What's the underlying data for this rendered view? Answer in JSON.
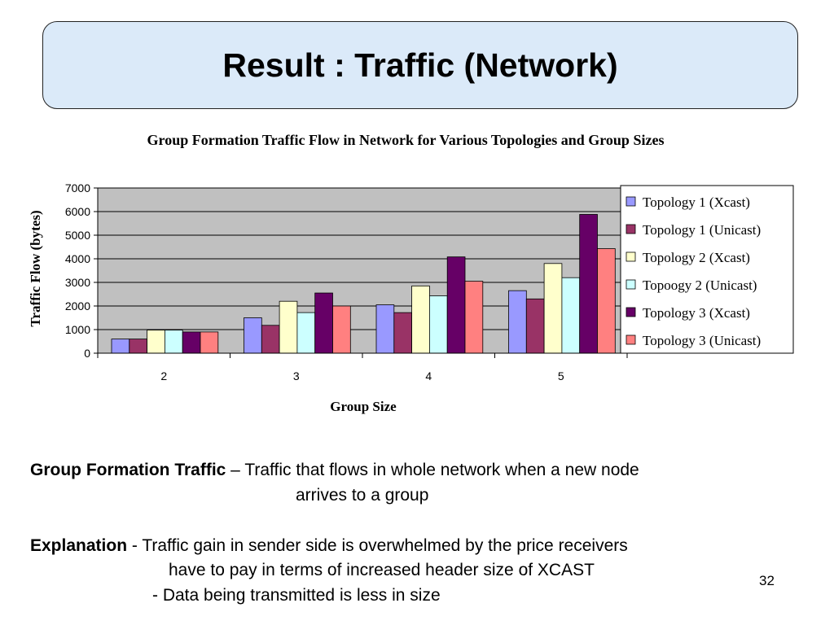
{
  "slide": {
    "title": "Result : Traffic (Network)",
    "definition_term": "Group Formation Traffic",
    "definition_line1": " – Traffic that flows in whole network when a new node",
    "definition_line2": "arrives to a group",
    "explanation_term": "Explanation",
    "explanation_line1": " - Traffic gain in sender side is overwhelmed by the price receivers",
    "explanation_line2": "have to pay in terms of increased header size of  XCAST",
    "explanation_line3": "- Data being transmitted is less in size",
    "page_number": "32"
  },
  "chart_data": {
    "type": "bar",
    "title": "Group Formation Traffic Flow in Network for Various Topologies and Group Sizes",
    "xlabel": "Group Size",
    "ylabel": "Traffic Flow (bytes)",
    "categories": [
      "2",
      "3",
      "4",
      "5"
    ],
    "ylim": [
      0,
      7000
    ],
    "yticks": [
      0,
      1000,
      2000,
      3000,
      4000,
      5000,
      6000,
      7000
    ],
    "grid": true,
    "legend_position": "right",
    "series": [
      {
        "name": "Topology 1 (Xcast)",
        "color": "#9999ff",
        "values": [
          600,
          1500,
          2050,
          2650
        ]
      },
      {
        "name": "Topology 1 (Unicast)",
        "color": "#993366",
        "values": [
          600,
          1180,
          1720,
          2300
        ]
      },
      {
        "name": "Topology 2 (Xcast)",
        "color": "#ffffcc",
        "values": [
          980,
          2200,
          2850,
          3800
        ]
      },
      {
        "name": "Topoogy 2 (Unicast)",
        "color": "#ccffff",
        "values": [
          980,
          1720,
          2430,
          3200
        ]
      },
      {
        "name": "Topology 3 (Xcast)",
        "color": "#660066",
        "values": [
          900,
          2550,
          4080,
          5880
        ]
      },
      {
        "name": "Topology 3 (Unicast)",
        "color": "#ff8080",
        "values": [
          900,
          2000,
          3050,
          4430
        ]
      }
    ]
  }
}
